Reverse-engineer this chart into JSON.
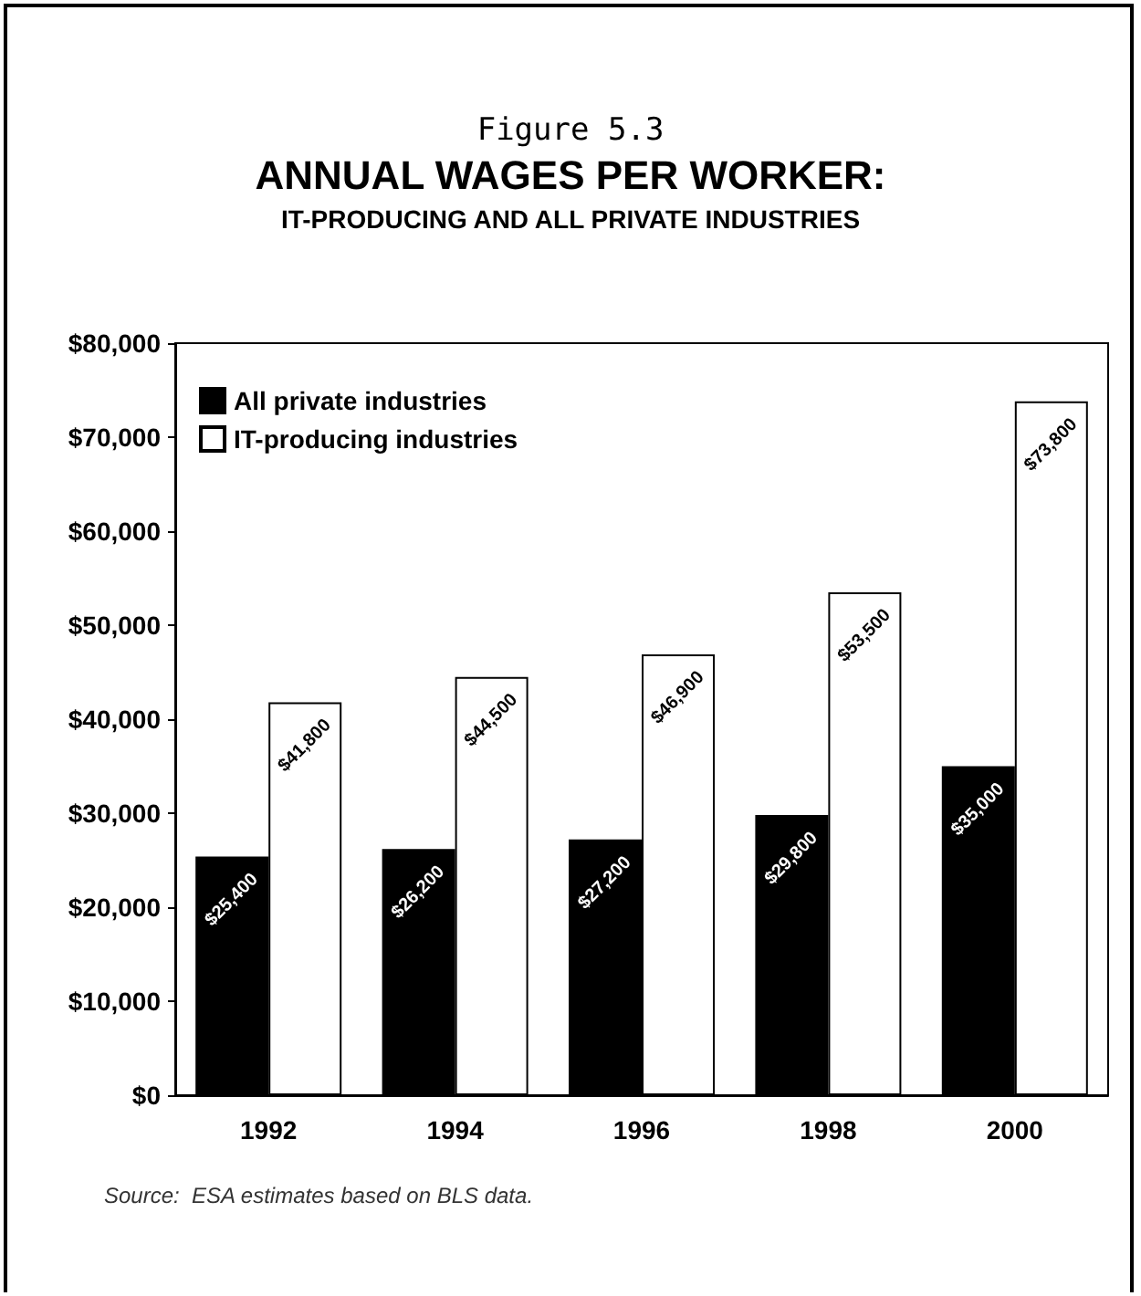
{
  "chart_data": {
    "type": "bar",
    "title": "ANNUAL WAGES PER WORKER:",
    "subtitle": "IT-PRODUCING AND ALL PRIVATE INDUSTRIES",
    "annotations": [
      "Figure 5.3",
      "Source:  ESA estimates based on BLS data."
    ],
    "categories": [
      "1992",
      "1994",
      "1996",
      "1998",
      "2000"
    ],
    "series": [
      {
        "name": "All private industries",
        "color": "#000000",
        "values": [
          25400,
          26200,
          27200,
          29800,
          35000
        ],
        "value_labels": [
          "$25,400",
          "$26,200",
          "$27,200",
          "$29,800",
          "$35,000"
        ]
      },
      {
        "name": "IT-producing industries",
        "color": "#ffffff",
        "values": [
          41800,
          44500,
          46900,
          53500,
          73800
        ],
        "value_labels": [
          "$41,800",
          "$44,500",
          "$46,900",
          "$53,500",
          "$73,800"
        ]
      }
    ],
    "ylim": [
      0,
      80000
    ],
    "yticks": [
      {
        "value": 0,
        "label": "$0"
      },
      {
        "value": 10000,
        "label": "$10,000"
      },
      {
        "value": 20000,
        "label": "$20,000"
      },
      {
        "value": 30000,
        "label": "$30,000"
      },
      {
        "value": 40000,
        "label": "$40,000"
      },
      {
        "value": 50000,
        "label": "$50,000"
      },
      {
        "value": 60000,
        "label": "$60,000"
      },
      {
        "value": 70000,
        "label": "$70,000"
      },
      {
        "value": 80000,
        "label": "$80,000"
      }
    ],
    "grid": false,
    "legend": "top left"
  }
}
